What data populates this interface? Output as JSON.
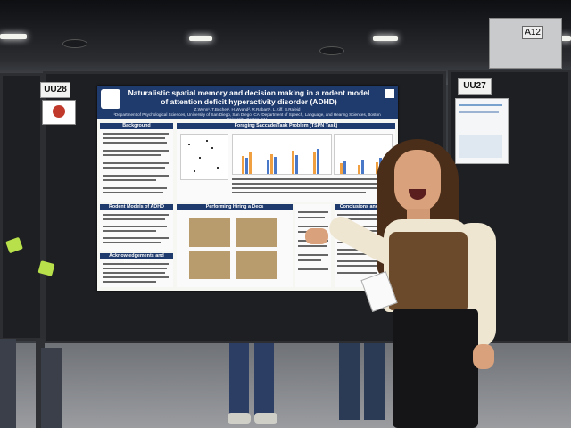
{
  "scene": {
    "description_free": true,
    "booth_tags": [
      "UU28",
      "UU27",
      "A12"
    ],
    "colors": {
      "poster_header": "#1f3b6e",
      "board": "#1d1f22",
      "top": "#efe6d2",
      "vest": "#6b4a2b"
    }
  },
  "poster": {
    "title": "Naturalistic spatial memory and decision making in a rodent model of attention deficit hyperactivity disorder (ADHD)",
    "authors": "Z.Wynn¹, T.Bucher¹, H.Wyand², R.Rabarti¹, L.Kiff, B.Rafeid",
    "affiliation": "¹Department of Psychological Sciences, University of San Diego, San Diego, CA  ²Department of Speech, Language, and Hearing Sciences, Boston University, Boston, MA",
    "sections": {
      "background": "Background",
      "foraging": "Foraging Saccade/Task Problem (TSPN Task)",
      "rodent_models": "Rodent Models of ADHD",
      "hiring": "Performing Hiring a Decs",
      "conclusions": "Conclusions and Next Steps",
      "ack": "Acknowledgements and References"
    }
  }
}
